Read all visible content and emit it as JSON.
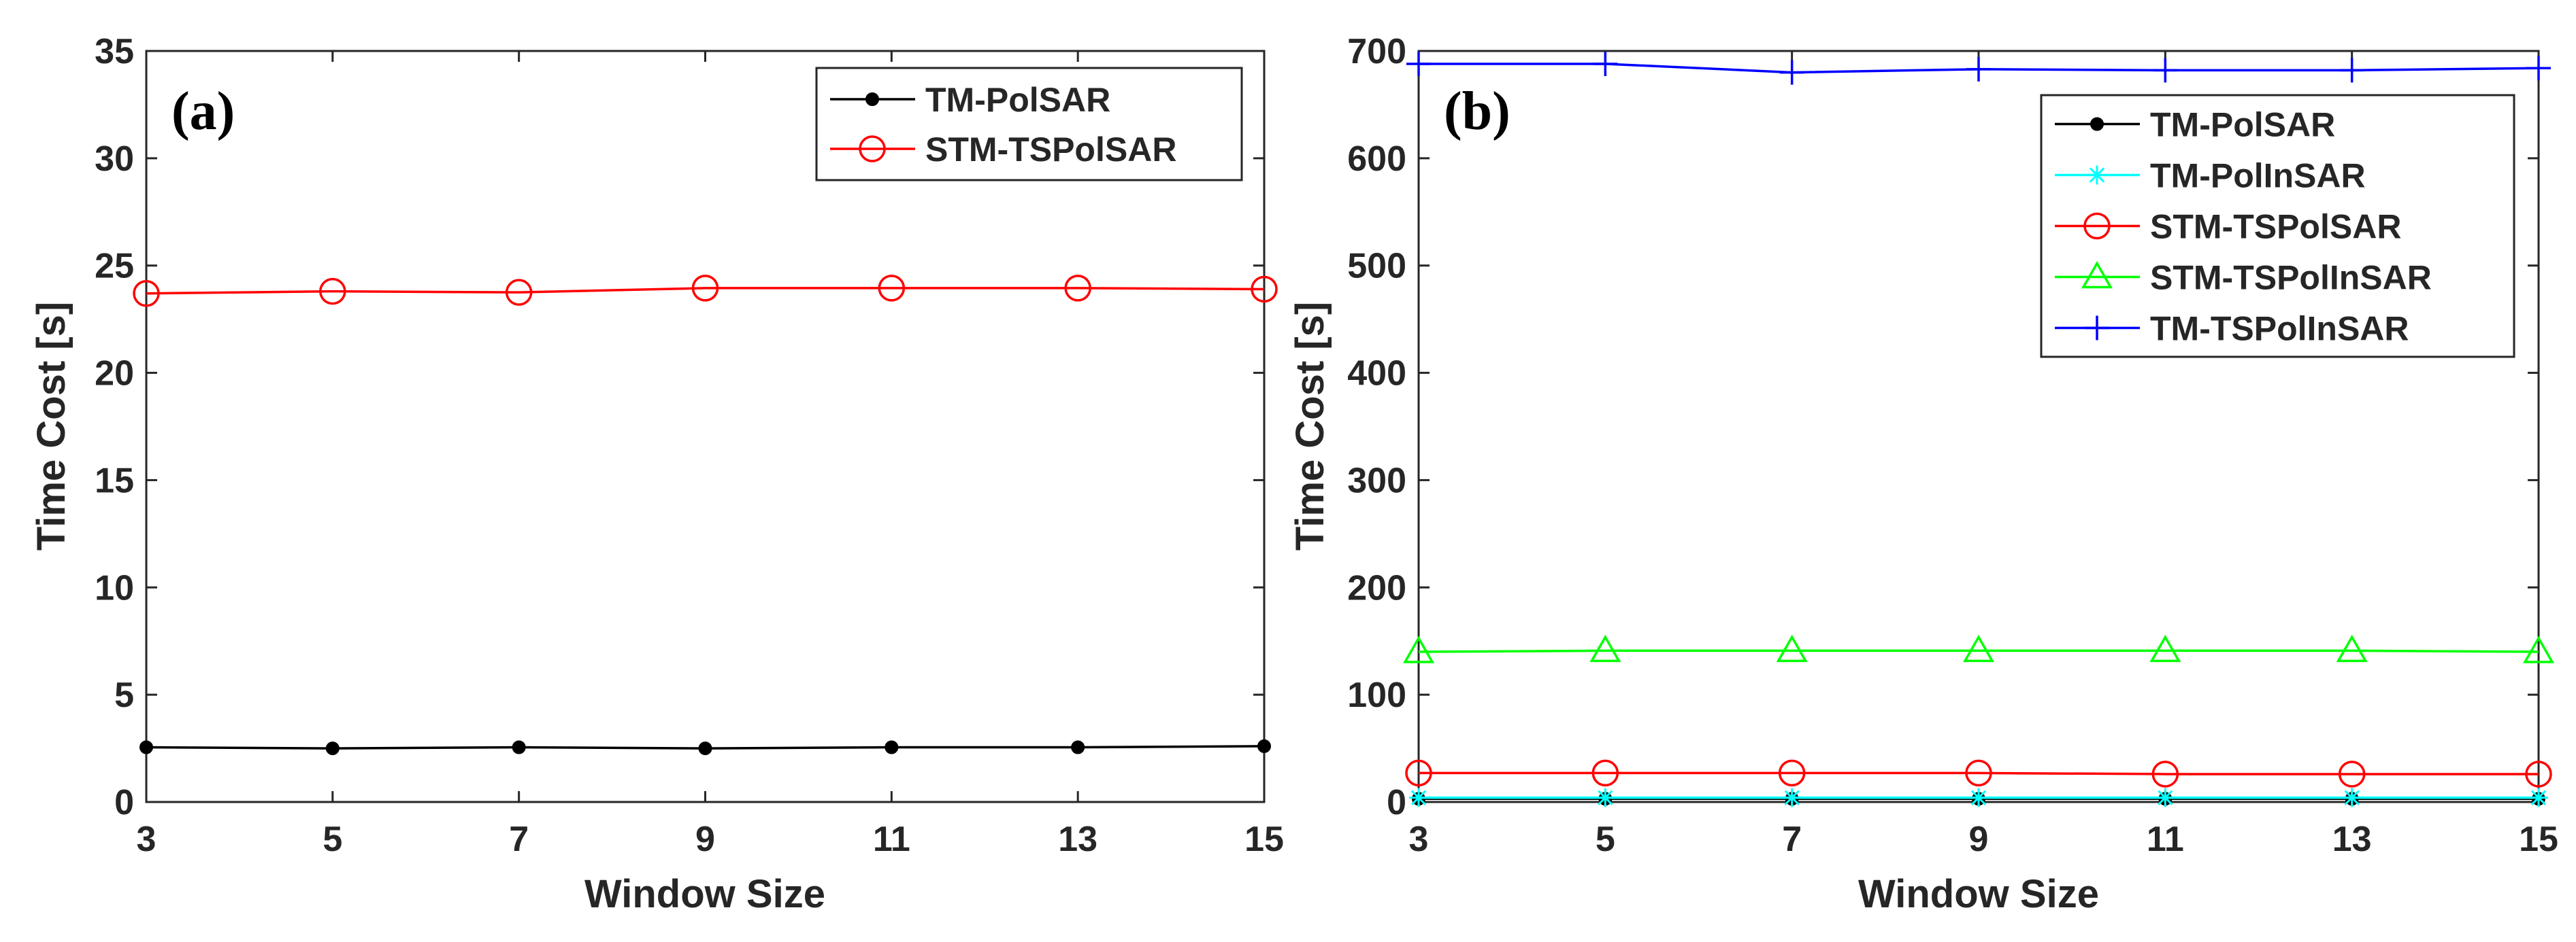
{
  "chart_data": [
    {
      "type": "line",
      "panel_label": "(a)",
      "title": "",
      "xlabel": "Window Size",
      "ylabel": "Time Cost [s]",
      "xlim": [
        3,
        15
      ],
      "ylim": [
        0,
        35
      ],
      "xticks": [
        "3",
        "5",
        "7",
        "9",
        "11",
        "13",
        "15"
      ],
      "yticks": [
        "0",
        "5",
        "10",
        "15",
        "20",
        "25",
        "30",
        "35"
      ],
      "grid": false,
      "legend_position": "top-right",
      "x": [
        3,
        5,
        7,
        9,
        11,
        13,
        15
      ],
      "series": [
        {
          "name": "TM-PolSAR",
          "color": "#000000",
          "marker": "dot",
          "values": [
            2.55,
            2.5,
            2.55,
            2.5,
            2.55,
            2.55,
            2.6
          ]
        },
        {
          "name": "STM-TSPolSAR",
          "color": "#ff0000",
          "marker": "circle",
          "values": [
            23.7,
            23.8,
            23.75,
            23.95,
            23.95,
            23.95,
            23.9
          ]
        }
      ]
    },
    {
      "type": "line",
      "panel_label": "(b)",
      "title": "",
      "xlabel": "Window Size",
      "ylabel": "Time Cost [s]",
      "xlim": [
        3,
        15
      ],
      "ylim": [
        0,
        700
      ],
      "xticks": [
        "3",
        "5",
        "7",
        "9",
        "11",
        "13",
        "15"
      ],
      "yticks": [
        "0",
        "100",
        "200",
        "300",
        "400",
        "500",
        "600",
        "700"
      ],
      "grid": false,
      "legend_position": "top-right",
      "x": [
        3,
        5,
        7,
        9,
        11,
        13,
        15
      ],
      "series": [
        {
          "name": "TM-PolSAR",
          "color": "#000000",
          "marker": "dot",
          "values": [
            3,
            3,
            3,
            3,
            3,
            3,
            3
          ]
        },
        {
          "name": "TM-PolInSAR",
          "color": "#00ffff",
          "marker": "asterisk",
          "values": [
            4,
            4,
            4,
            4,
            4,
            4,
            4
          ]
        },
        {
          "name": "STM-TSPolSAR",
          "color": "#ff0000",
          "marker": "circle",
          "values": [
            27,
            27,
            27,
            27,
            26,
            26,
            26
          ]
        },
        {
          "name": "STM-TSPolInSAR",
          "color": "#00ff00",
          "marker": "triangle",
          "values": [
            140,
            141,
            141,
            141,
            141,
            141,
            140
          ]
        },
        {
          "name": "TM-TSPolInSAR",
          "color": "#0000ff",
          "marker": "plus",
          "values": [
            688,
            688,
            680,
            683,
            682,
            682,
            684
          ]
        }
      ]
    }
  ]
}
